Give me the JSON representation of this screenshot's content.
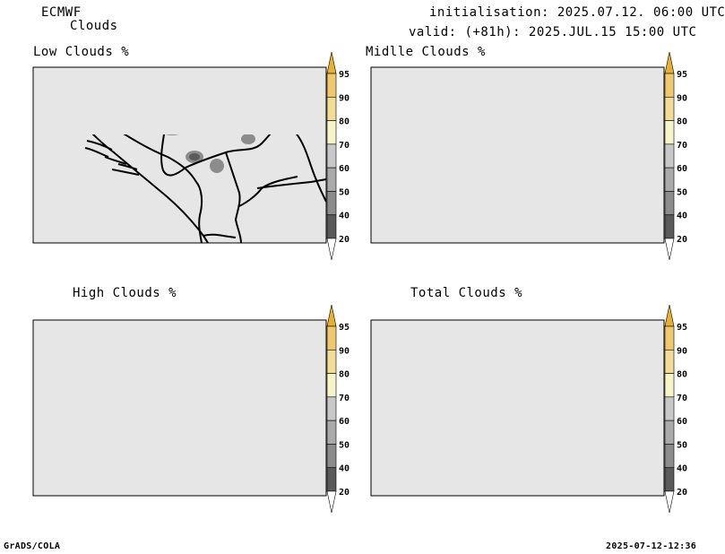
{
  "header": {
    "model": "ECMWF",
    "product": "Clouds",
    "initialisation": "initialisation: 2025.07.12. 06:00 UTC",
    "valid": "valid: (+81h): 2025.JUL.15 15:00 UTC"
  },
  "panels": [
    {
      "id": "low",
      "title": "Low Clouds %"
    },
    {
      "id": "middle",
      "title": "Midlle Clouds %"
    },
    {
      "id": "high",
      "title": "High Clouds %"
    },
    {
      "id": "total",
      "title": "Total Clouds %"
    }
  ],
  "colorbar": {
    "levels": [
      "20",
      "40",
      "50",
      "60",
      "70",
      "80",
      "90",
      "95"
    ],
    "colors": [
      "#ffffff",
      "#5a5a5a",
      "#8c8c8c",
      "#aaaaaa",
      "#c8c8c8",
      "#f5f5c8",
      "#f3dc96",
      "#f0c86e",
      "#e8b030"
    ]
  },
  "footer": {
    "left": "GrADS/COLA",
    "right": "2025-07-12-12:36"
  }
}
